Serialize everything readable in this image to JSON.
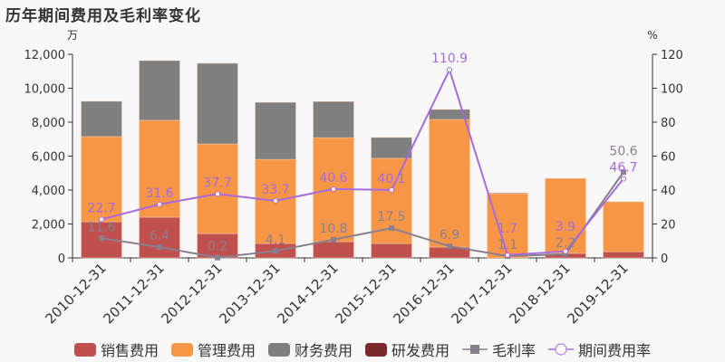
{
  "title": "历年期间费用及毛利率变化",
  "chart_data": {
    "type": "bar",
    "stacked": true,
    "title": "历年期间费用及毛利率变化",
    "left_unit": "万",
    "right_unit": "%",
    "ylim_left": [
      0,
      12000
    ],
    "ylim_right": [
      0,
      120
    ],
    "left_ticks": [
      "0",
      "2,000",
      "4,000",
      "6,000",
      "8,000",
      "10,000",
      "12,000"
    ],
    "right_ticks": [
      "0",
      "20",
      "40",
      "60",
      "80",
      "100",
      "120"
    ],
    "categories": [
      "2010-12-31",
      "2011-12-31",
      "2012-12-31",
      "2013-12-31",
      "2014-12-31",
      "2015-12-31",
      "2016-12-31",
      "2017-12-31",
      "2018-12-31",
      "2019-12-31"
    ],
    "legend_position": "bottom",
    "series": [
      {
        "name": "销售费用",
        "type": "bar",
        "axis": "left",
        "color": "#c0504d",
        "values": [
          2130,
          2400,
          1440,
          850,
          960,
          850,
          640,
          0,
          270,
          370
        ]
      },
      {
        "name": "管理费用",
        "type": "bar",
        "axis": "left",
        "color": "#f79646",
        "values": [
          5020,
          5710,
          5280,
          4960,
          6130,
          5020,
          7520,
          3790,
          4420,
          2940
        ]
      },
      {
        "name": "财务费用",
        "type": "bar",
        "axis": "left",
        "color": "#7f7f7f",
        "values": [
          2080,
          3520,
          4750,
          3360,
          2130,
          1230,
          590,
          50,
          0,
          0
        ]
      },
      {
        "name": "研发费用",
        "type": "bar",
        "axis": "left",
        "color": "#7b2b2b",
        "values": [
          0,
          0,
          0,
          0,
          0,
          0,
          0,
          0,
          0,
          0
        ]
      },
      {
        "name": "毛利率",
        "type": "line",
        "axis": "right",
        "color": "#8a7f8e",
        "values": [
          11.6,
          6.4,
          0.2,
          4.1,
          10.8,
          17.5,
          6.9,
          1.1,
          2.2,
          50.6
        ],
        "labels": [
          "11.6",
          "6.4",
          "0.2",
          "4.1",
          "10.8",
          "17.5",
          "6.9",
          "1.1",
          "2.2",
          "50.6"
        ]
      },
      {
        "name": "期间费用率",
        "type": "line",
        "axis": "right",
        "color": "#a66ae0",
        "values": [
          22.7,
          31.6,
          37.7,
          33.7,
          40.6,
          40.1,
          110.9,
          1.7,
          3.9,
          46.7
        ],
        "labels": [
          "22.7",
          "31.6",
          "37.7",
          "33.7",
          "40.6",
          "40.1",
          "110.9",
          "1.7",
          "3.9",
          "46.7"
        ]
      }
    ]
  }
}
